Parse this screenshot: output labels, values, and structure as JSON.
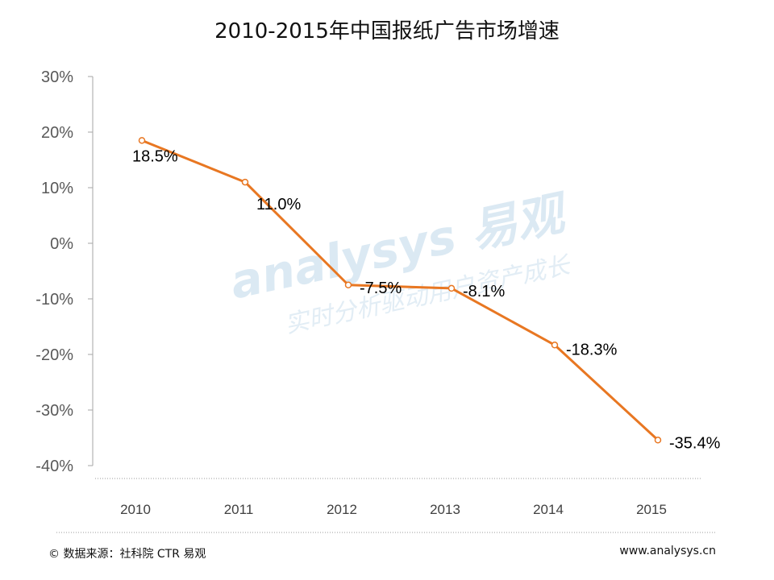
{
  "chart_data": {
    "type": "line",
    "title": "2010-2015年中国报纸广告市场增速",
    "categories": [
      "2010",
      "2011",
      "2012",
      "2013",
      "2014",
      "2015"
    ],
    "series": [
      {
        "values": [
          18.5,
          11.0,
          -7.5,
          -8.1,
          -18.3,
          -35.4
        ],
        "labels": [
          "18.5%",
          "11.0%",
          "-7.5%",
          "-8.1%",
          "-18.3%",
          "-35.4%"
        ]
      }
    ],
    "ylim": [
      -40,
      30
    ],
    "yticks": [
      30,
      20,
      10,
      0,
      -10,
      -20,
      -30,
      -40
    ],
    "ytick_labels": [
      "30%",
      "20%",
      "10%",
      "0%",
      "-10%",
      "-20%",
      "-30%",
      "-40%"
    ],
    "grid": false,
    "line_color": "#e87722"
  },
  "watermark": {
    "brand": "analysys 易观",
    "slogan": "实时分析驱动用户资产成长"
  },
  "footer": {
    "source": "© 数据来源：社科院 CTR 易观",
    "website": "www.analysys.cn"
  }
}
